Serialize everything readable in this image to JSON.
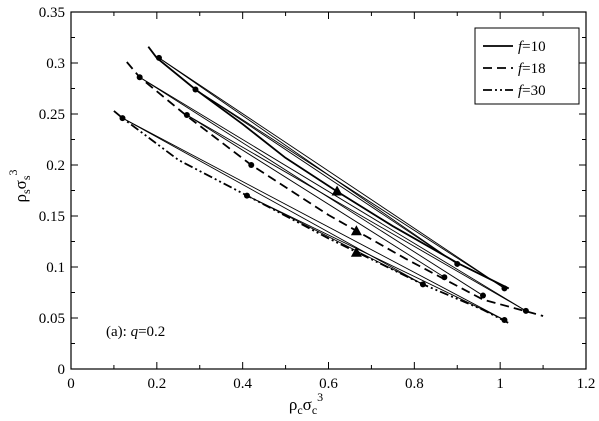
{
  "chart_data": {
    "type": "line",
    "xlim": [
      0,
      1.2
    ],
    "ylim": [
      0,
      0.35
    ],
    "x_ticks": [
      0,
      0.2,
      0.4,
      0.6,
      0.8,
      1,
      1.2
    ],
    "x_tick_labels": [
      "0",
      "0.2",
      "0.4",
      "0.6",
      "0.8",
      "1",
      "1.2"
    ],
    "y_ticks": [
      0,
      0.05,
      0.1,
      0.15,
      0.2,
      0.25,
      0.3,
      0.35
    ],
    "y_tick_labels": [
      "0",
      "0.05",
      "0.1",
      "0.15",
      "0.2",
      "0.25",
      "0.3",
      "0.35"
    ],
    "xlabel": {
      "base1": "ρ",
      "sub1": "c",
      "base2": "σ",
      "sub2": "c",
      "sup": "3"
    },
    "ylabel": {
      "base1": "ρ",
      "sub1": "s",
      "base2": "σ",
      "sub2": "s",
      "sup": "3"
    },
    "annotation": {
      "prefix": "(a): ",
      "var": "q",
      "suffix": "=0.2"
    },
    "grid": false,
    "legend_placement": "top-right",
    "series": [
      {
        "name_var": "f",
        "name_value": "=10",
        "dash": "solid",
        "x": [
          0.18,
          0.2,
          0.29,
          0.4,
          0.5,
          0.62,
          0.75,
          0.9,
          1.02
        ],
        "y": [
          0.316,
          0.305,
          0.274,
          0.24,
          0.207,
          0.174,
          0.14,
          0.104,
          0.079
        ]
      },
      {
        "name_var": "f",
        "name_value": "=18",
        "dash": "dashed",
        "x": [
          0.13,
          0.16,
          0.27,
          0.42,
          0.6,
          0.78,
          0.96,
          1.1
        ],
        "y": [
          0.301,
          0.286,
          0.248,
          0.2,
          0.151,
          0.108,
          0.068,
          0.052
        ]
      },
      {
        "name_var": "f",
        "name_value": "=30",
        "dash": "dashdot",
        "x": [
          0.1,
          0.12,
          0.25,
          0.41,
          0.6,
          0.82,
          0.96,
          1.02
        ],
        "y": [
          0.253,
          0.246,
          0.205,
          0.17,
          0.128,
          0.083,
          0.058,
          0.045
        ]
      }
    ],
    "tie_lines": [
      {
        "from": [
          0.205,
          0.305
        ],
        "to": [
          1.01,
          0.079
        ]
      },
      {
        "from": [
          0.205,
          0.305
        ],
        "to": [
          0.9,
          0.103
        ]
      },
      {
        "from": [
          0.29,
          0.274
        ],
        "to": [
          1.01,
          0.079
        ]
      },
      {
        "from": [
          0.29,
          0.274
        ],
        "to": [
          0.9,
          0.103
        ]
      },
      {
        "from": [
          0.16,
          0.286
        ],
        "to": [
          1.06,
          0.057
        ]
      },
      {
        "from": [
          0.16,
          0.286
        ],
        "to": [
          0.96,
          0.072
        ]
      },
      {
        "from": [
          0.27,
          0.249
        ],
        "to": [
          0.87,
          0.09
        ]
      },
      {
        "from": [
          0.27,
          0.249
        ],
        "to": [
          1.06,
          0.057
        ]
      },
      {
        "from": [
          0.12,
          0.246
        ],
        "to": [
          1.01,
          0.048
        ]
      },
      {
        "from": [
          0.12,
          0.246
        ],
        "to": [
          0.82,
          0.083
        ]
      },
      {
        "from": [
          0.41,
          0.17
        ],
        "to": [
          1.01,
          0.048
        ]
      },
      {
        "from": [
          0.41,
          0.17
        ],
        "to": [
          0.82,
          0.083
        ]
      }
    ],
    "coexistence_points": {
      "x": [
        0.205,
        0.29,
        0.9,
        1.01,
        0.16,
        0.27,
        0.42,
        0.87,
        0.96,
        1.06,
        0.12,
        0.41,
        0.82,
        1.01
      ],
      "y": [
        0.305,
        0.274,
        0.103,
        0.079,
        0.286,
        0.249,
        0.2,
        0.09,
        0.072,
        0.057,
        0.246,
        0.17,
        0.083,
        0.048
      ]
    },
    "critical_points": {
      "x": [
        0.62,
        0.665,
        0.665
      ],
      "y": [
        0.174,
        0.135,
        0.114
      ]
    }
  }
}
